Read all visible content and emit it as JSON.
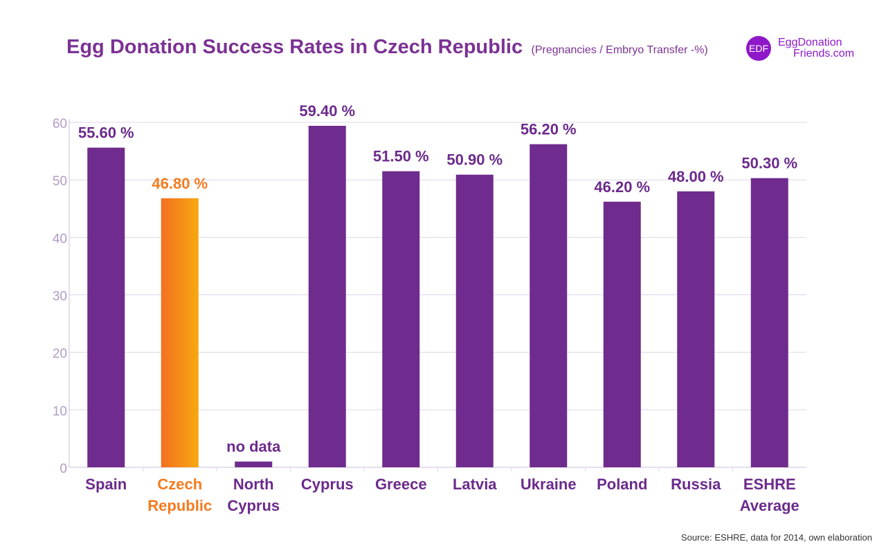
{
  "header": {
    "title": "Egg Donation Success Rates in Czech Republic",
    "subtitle": "(Pregnancies / Embryo Transfer -%)"
  },
  "logo": {
    "badge": "EDF",
    "line1": "EggDonation",
    "line2": "Friends.com",
    "color": "#8e18c8"
  },
  "footer": {
    "source": "Source: ESHRE, data for 2014, own elaboration"
  },
  "chart_data": {
    "type": "bar",
    "categories": [
      [
        "Spain"
      ],
      [
        "Czech",
        "Republic"
      ],
      [
        "North",
        "Cyprus"
      ],
      [
        "Cyprus"
      ],
      [
        "Greece"
      ],
      [
        "Latvia"
      ],
      [
        "Ukraine"
      ],
      [
        "Poland"
      ],
      [
        "Russia"
      ],
      [
        "ESHRE",
        "Average"
      ]
    ],
    "values": [
      55.6,
      46.8,
      1,
      59.4,
      51.5,
      50.9,
      56.2,
      46.2,
      48.0,
      50.3
    ],
    "value_labels": [
      "55.60 %",
      "46.80 %",
      "no data",
      "59.40 %",
      "51.50 %",
      "50.90 %",
      "56.20 %",
      "46.20 %",
      "48.00 %",
      "50.30 %"
    ],
    "yticks": [
      0,
      10,
      20,
      30,
      40,
      50,
      60
    ],
    "ylim": [
      0,
      60
    ],
    "grid": true,
    "highlight_index": 1,
    "colors": {
      "bar": "#6f2b8d",
      "highlight_start": "#f37021",
      "highlight_end": "#f7a80f",
      "highlight_text": "#f47b20",
      "label": "#6b2a8c",
      "tick": "#b19cc4",
      "grid": "#ddd4e6"
    }
  }
}
